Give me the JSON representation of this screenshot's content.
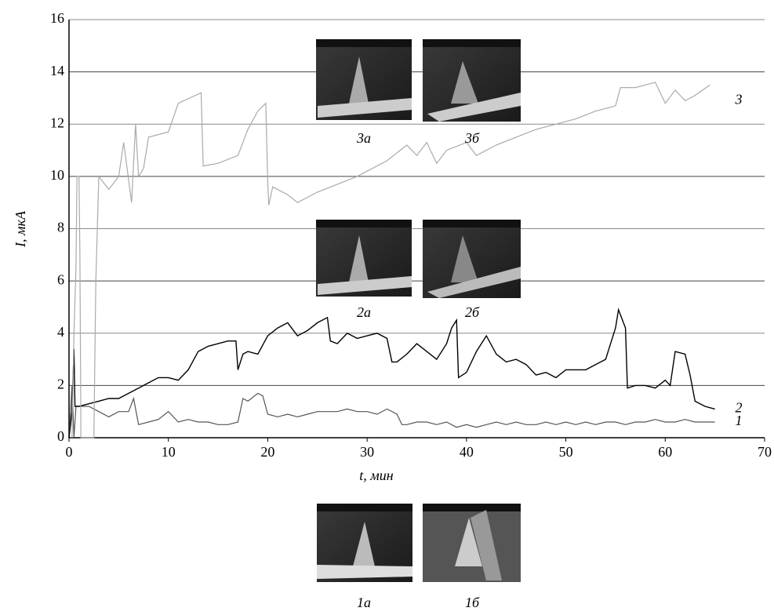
{
  "chart_data": {
    "type": "line",
    "xlabel": "t, мин",
    "ylabel": "I, мкА",
    "xlim": [
      0,
      70
    ],
    "xticks": [
      0,
      10,
      20,
      30,
      40,
      50,
      60,
      70
    ],
    "ylim": [
      0,
      16
    ],
    "yticks": [
      0,
      2,
      4,
      6,
      8,
      10,
      12,
      14,
      16
    ],
    "grid": true,
    "series": [
      {
        "name": "1",
        "color": "#555555",
        "x": [
          0,
          0.3,
          0.5,
          0.7,
          1,
          2,
          3,
          4,
          5,
          6,
          6.5,
          7,
          8,
          9,
          10,
          11,
          12,
          13,
          14,
          15,
          16,
          17,
          17.5,
          18,
          19,
          19.5,
          20,
          21,
          22,
          23,
          24,
          25,
          26,
          27,
          28,
          29,
          30,
          31,
          32,
          33,
          33.5,
          34,
          35,
          36,
          37,
          38,
          39,
          40,
          41,
          42,
          43,
          44,
          45,
          46,
          47,
          48,
          49,
          50,
          51,
          52,
          53,
          54,
          55,
          56,
          57,
          58,
          59,
          60,
          61,
          62,
          63,
          64,
          65
        ],
        "values": [
          0,
          2,
          0,
          1.2,
          1.2,
          1.2,
          1.0,
          0.8,
          1.0,
          1.0,
          1.5,
          0.5,
          0.6,
          0.7,
          1.0,
          0.6,
          0.7,
          0.6,
          0.6,
          0.5,
          0.5,
          0.6,
          1.5,
          1.4,
          1.7,
          1.6,
          0.9,
          0.8,
          0.9,
          0.8,
          0.9,
          1.0,
          1.0,
          1.0,
          1.1,
          1.0,
          1.0,
          0.9,
          1.1,
          0.9,
          0.5,
          0.5,
          0.6,
          0.6,
          0.5,
          0.6,
          0.4,
          0.5,
          0.4,
          0.5,
          0.6,
          0.5,
          0.6,
          0.5,
          0.5,
          0.6,
          0.5,
          0.6,
          0.5,
          0.6,
          0.5,
          0.6,
          0.6,
          0.5,
          0.6,
          0.6,
          0.7,
          0.6,
          0.6,
          0.7,
          0.6,
          0.6,
          0.6
        ]
      },
      {
        "name": "2",
        "color": "#000000",
        "x": [
          0,
          0.3,
          0.5,
          0.6,
          1,
          2,
          3,
          4,
          5,
          6,
          7,
          8,
          9,
          10,
          11,
          12,
          13,
          14,
          15,
          16,
          16.8,
          17,
          17.5,
          18,
          19,
          20,
          21,
          22,
          23,
          24,
          25,
          26,
          26.3,
          27,
          28,
          29,
          30,
          31,
          32,
          32.5,
          33,
          34,
          35,
          36,
          37,
          38,
          38.5,
          39,
          39.2,
          40,
          41,
          42,
          43,
          44,
          45,
          46,
          47,
          48,
          49,
          50,
          51,
          52,
          53,
          54,
          54.5,
          55,
          55.3,
          56,
          56.2,
          57,
          58,
          59,
          60,
          60.5,
          61,
          62,
          62.5,
          63,
          64,
          65
        ],
        "values": [
          0,
          1,
          3.4,
          1.2,
          1.2,
          1.3,
          1.4,
          1.5,
          1.5,
          1.7,
          1.9,
          2.1,
          2.3,
          2.3,
          2.2,
          2.6,
          3.3,
          3.5,
          3.6,
          3.7,
          3.7,
          2.6,
          3.2,
          3.3,
          3.2,
          3.9,
          4.2,
          4.4,
          3.9,
          4.1,
          4.4,
          4.6,
          3.7,
          3.6,
          4.0,
          3.8,
          3.9,
          4.0,
          3.8,
          2.9,
          2.9,
          3.2,
          3.6,
          3.3,
          3.0,
          3.6,
          4.2,
          4.5,
          2.3,
          2.5,
          3.3,
          3.9,
          3.2,
          2.9,
          3.0,
          2.8,
          2.4,
          2.5,
          2.3,
          2.6,
          2.6,
          2.6,
          2.8,
          3.0,
          3.6,
          4.2,
          4.9,
          4.2,
          1.9,
          2.0,
          2.0,
          1.9,
          2.2,
          2.0,
          3.3,
          3.2,
          2.4,
          1.4,
          1.2,
          1.1
        ]
      },
      {
        "name": "3",
        "color": "#aaaaaa",
        "x": [
          0.3,
          0.5,
          0.7,
          0.8,
          1.0,
          1.1,
          1.2,
          2.5,
          2.7,
          3.0,
          4,
          5,
          5.5,
          6.3,
          6.7,
          7,
          7.5,
          8,
          10,
          11,
          13.3,
          13.5,
          15,
          17,
          18,
          19,
          19.8,
          20,
          20.1,
          20.5,
          22,
          23,
          25,
          27,
          29,
          30,
          32,
          34,
          35,
          36,
          37,
          38,
          40,
          41,
          43,
          45,
          47,
          49,
          51,
          53,
          55,
          55.5,
          57,
          59,
          60,
          61,
          62,
          63,
          64.5
        ],
        "values": [
          0,
          4,
          6.5,
          10,
          10,
          7,
          0,
          0,
          6,
          10,
          9.5,
          10,
          11.3,
          9,
          12,
          10,
          10.3,
          11.5,
          11.7,
          12.8,
          13.2,
          10.4,
          10.5,
          10.8,
          11.8,
          12.5,
          12.8,
          9.8,
          8.9,
          9.6,
          9.3,
          9,
          9.4,
          9.7,
          10,
          10.2,
          10.6,
          11.2,
          10.8,
          11.3,
          10.5,
          11,
          11.3,
          10.8,
          11.2,
          11.5,
          11.8,
          12,
          12.2,
          12.5,
          12.7,
          13.4,
          13.4,
          13.6,
          12.8,
          13.3,
          12.9,
          13.1,
          13.5
        ]
      }
    ],
    "annotations": [
      "3а",
      "3б",
      "2а",
      "2б",
      "1а",
      "1б"
    ]
  }
}
